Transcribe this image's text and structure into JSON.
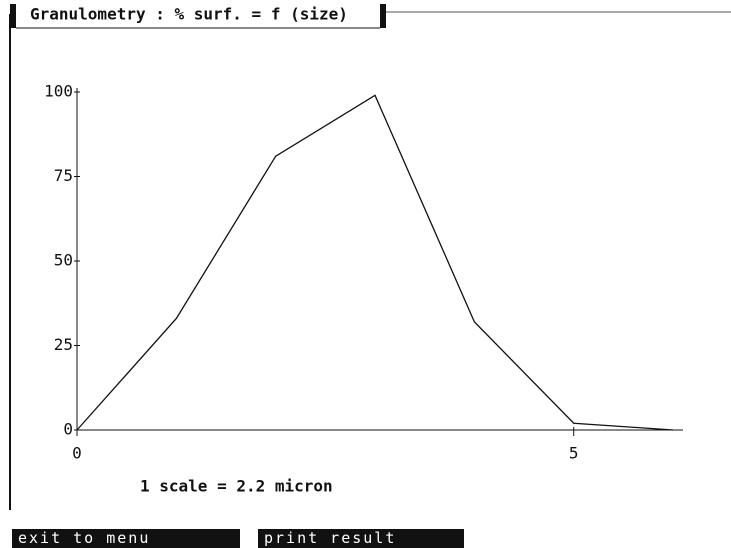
{
  "chart_data": {
    "type": "line",
    "title": "Granulometry : % surf. = f (size)",
    "x": [
      0,
      1,
      2,
      3,
      4,
      5,
      5.5,
      6
    ],
    "values": [
      0,
      33,
      81,
      99,
      32,
      2,
      1,
      0
    ],
    "color": "#111111",
    "xlim": [
      0,
      6.1
    ],
    "ylim": [
      0,
      100
    ],
    "xticks": [
      0,
      5
    ],
    "yticks": [
      0,
      25,
      50,
      75,
      100
    ],
    "annotation": "1 scale = 2.2 micron"
  },
  "buttons": [
    "exit to menu",
    "print result"
  ]
}
